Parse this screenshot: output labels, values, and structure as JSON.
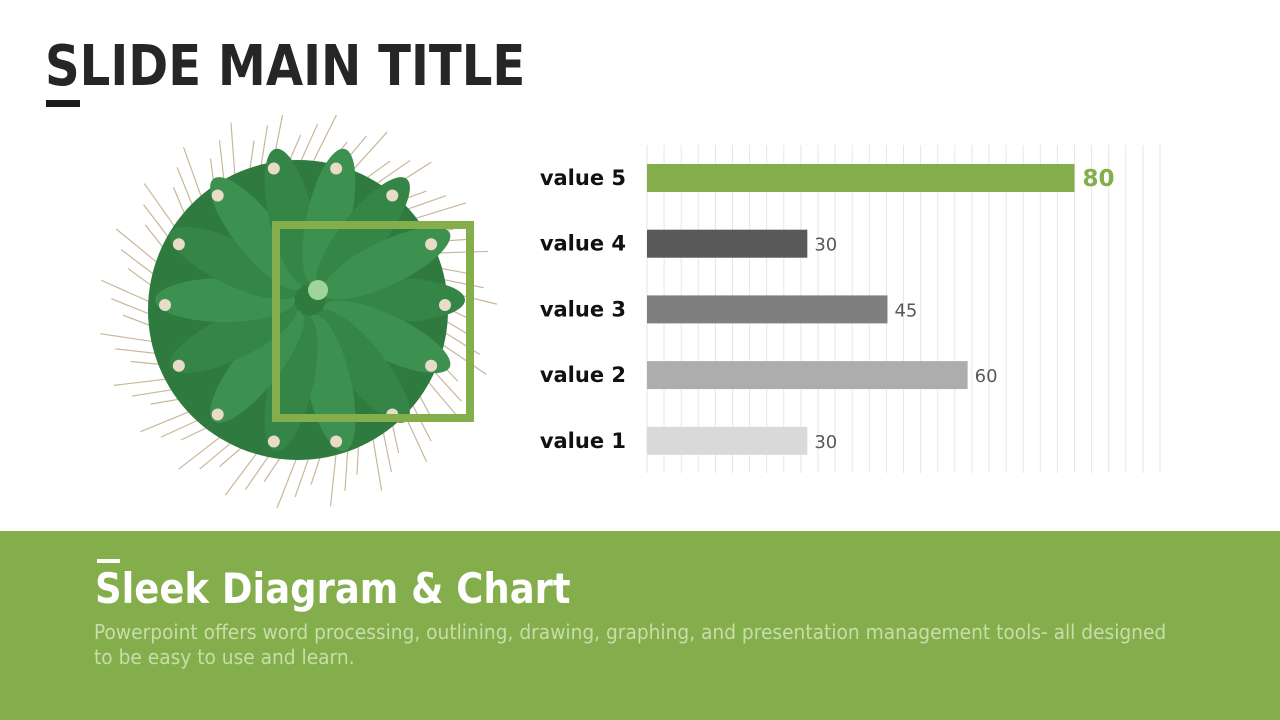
{
  "slide": {
    "title": "SLIDE MAIN TITLE",
    "footer_title": "Sleek Diagram & Chart",
    "footer_text": "Powerpoint offers word processing, outlining, drawing, graphing, and presentation management tools- all designed to be easy to use and learn."
  },
  "colors": {
    "accent": "#84ad4c",
    "footer_text": "#c8dea8"
  },
  "chart_data": {
    "type": "bar",
    "orientation": "horizontal",
    "categories": [
      "value 5",
      "value 4",
      "value 3",
      "value 2",
      "value 1"
    ],
    "values": [
      80,
      30,
      45,
      60,
      30
    ],
    "labels": [
      "80",
      "30",
      "45",
      "60",
      "30"
    ],
    "colors": [
      "#84ad4c",
      "#595959",
      "#7f7f7f",
      "#adadad",
      "#d9d9d9"
    ],
    "xlim": [
      0,
      96
    ],
    "grid": true,
    "grid_step": 3.2,
    "title": "",
    "xlabel": "",
    "ylabel": ""
  }
}
